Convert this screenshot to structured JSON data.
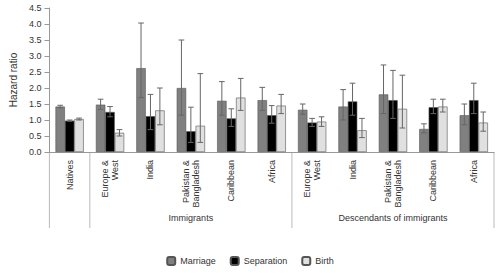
{
  "chart_data": {
    "type": "bar",
    "y_label": "Hazard ratio",
    "categories": [
      "Natives",
      "Europe & West",
      "India",
      "Pakistan & Bangladesh",
      "Caribbean",
      "Africa",
      "Europe & West",
      "India",
      "Pakistan & Bangladesh",
      "Caribbean",
      "Africa"
    ],
    "category_groups": [
      null,
      "Immigrants",
      "Immigrants",
      "Immigrants",
      "Immigrants",
      "Immigrants",
      "Descendants of immigrants",
      "Descendants of immigrants",
      "Descendants of immigrants",
      "Descendants of immigrants",
      "Descendants of immigrants"
    ],
    "series": [
      {
        "name": "Marriage",
        "color": "#808080",
        "values": [
          1.42,
          1.48,
          2.62,
          2.0,
          1.6,
          1.62,
          1.32,
          1.42,
          1.8,
          0.72,
          1.15
        ],
        "error_low": [
          1.38,
          1.33,
          1.7,
          1.15,
          1.15,
          1.3,
          1.18,
          1.0,
          1.2,
          0.6,
          0.85
        ],
        "error_high": [
          1.46,
          1.65,
          4.03,
          3.5,
          2.2,
          2.02,
          1.5,
          1.95,
          2.72,
          0.88,
          1.5
        ]
      },
      {
        "name": "Separation",
        "color": "#000000",
        "values": [
          0.98,
          1.25,
          1.12,
          0.65,
          1.05,
          1.15,
          0.92,
          1.58,
          1.62,
          1.4,
          1.62
        ],
        "error_low": [
          0.96,
          1.1,
          0.7,
          0.3,
          0.8,
          0.9,
          0.8,
          1.15,
          1.05,
          1.2,
          1.2
        ],
        "error_high": [
          1.0,
          1.42,
          1.8,
          1.4,
          1.35,
          1.45,
          1.05,
          2.15,
          2.55,
          1.65,
          2.15
        ]
      },
      {
        "name": "Birth",
        "color": "#e0e0e0",
        "values": [
          1.03,
          0.6,
          1.3,
          0.82,
          1.7,
          1.45,
          0.95,
          0.68,
          1.35,
          1.42,
          0.92
        ],
        "error_low": [
          1.0,
          0.5,
          0.85,
          0.3,
          1.3,
          1.2,
          0.8,
          0.45,
          0.75,
          1.25,
          0.65
        ],
        "error_high": [
          1.06,
          0.7,
          2.0,
          2.45,
          2.3,
          1.8,
          1.1,
          1.05,
          2.4,
          1.65,
          1.25
        ]
      }
    ],
    "ylim": [
      0,
      4.5
    ],
    "yticks": [
      {
        "value": 0,
        "label": "0.0"
      },
      {
        "value": 0.5,
        "label": "0.5"
      },
      {
        "value": 1,
        "label": "1.0"
      },
      {
        "value": 1.5,
        "label": "1.5"
      },
      {
        "value": 2,
        "label": "2.0"
      },
      {
        "value": 2.5,
        "label": "2.5"
      },
      {
        "value": 3,
        "label": "3.0"
      },
      {
        "value": 3.5,
        "label": "3.5"
      },
      {
        "value": 4,
        "label": "4.0"
      },
      {
        "value": 4.5,
        "label": "4.5"
      }
    ],
    "grid": false,
    "legend": "bottom"
  }
}
